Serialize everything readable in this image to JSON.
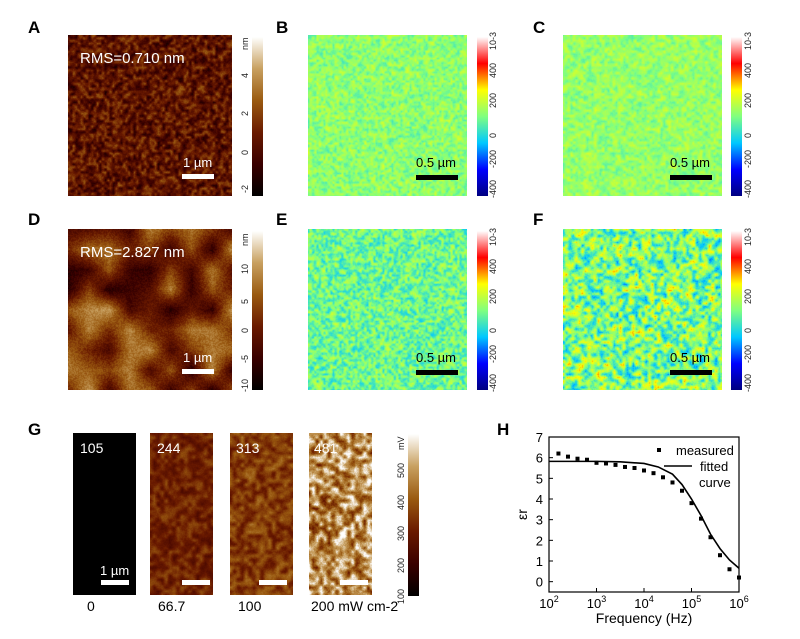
{
  "panels": {
    "A": {
      "label": "A",
      "rms": "RMS=0.710 nm",
      "scale": "1 µm",
      "cbar_unit": "nm",
      "cbar_ticks": [
        "4",
        "2",
        "0",
        "-2"
      ]
    },
    "B": {
      "label": "B",
      "scale": "0.5 µm",
      "cbar_unit": "10-3",
      "cbar_ticks": [
        "400",
        "200",
        "0",
        "-200",
        "-400"
      ]
    },
    "C": {
      "label": "C",
      "scale": "0.5 µm",
      "cbar_unit": "10-3",
      "cbar_ticks": [
        "400",
        "200",
        "0",
        "-200",
        "-400"
      ]
    },
    "D": {
      "label": "D",
      "rms": "RMS=2.827 nm",
      "scale": "1 µm",
      "cbar_unit": "nm",
      "cbar_ticks": [
        "10",
        "5",
        "0",
        "-5",
        "-10"
      ]
    },
    "E": {
      "label": "E",
      "scale": "0.5 µm",
      "cbar_unit": "10-3",
      "cbar_ticks": [
        "400",
        "200",
        "0",
        "-200",
        "-400"
      ]
    },
    "F": {
      "label": "F",
      "scale": "0.5 µm",
      "cbar_unit": "10-3",
      "cbar_ticks": [
        "400",
        "200",
        "0",
        "-200",
        "-400"
      ]
    },
    "G": {
      "label": "G",
      "scale": "1 µm",
      "values": [
        "105",
        "244",
        "313",
        "481"
      ],
      "intensities": [
        "0",
        "66.7",
        "100",
        "200 mW cm-2"
      ],
      "cbar_unit": "mV",
      "cbar_ticks": [
        "500",
        "400",
        "300",
        "200",
        "100"
      ]
    },
    "H": {
      "label": "H"
    }
  },
  "chart_data": {
    "type": "scatter+line",
    "xlabel": "Frequency (Hz)",
    "ylabel": "εr",
    "xscale": "log",
    "xlim": [
      100,
      1000000
    ],
    "ylim": [
      -0.5,
      7
    ],
    "xticks": [
      "10^2",
      "10^3",
      "10^4",
      "10^5",
      "10^6"
    ],
    "yticks": [
      "0",
      "1",
      "2",
      "3",
      "4",
      "5",
      "6",
      "7"
    ],
    "legend": {
      "placement": "top-right",
      "entries": [
        "measured",
        "fitted curve"
      ]
    },
    "series": [
      {
        "name": "measured",
        "kind": "scatter",
        "x": [
          158,
          251,
          398,
          631,
          1000,
          1585,
          2512,
          3981,
          6310,
          10000,
          15849,
          25119,
          39811,
          63096,
          100000,
          158489,
          251189,
          398107,
          630957,
          1000000
        ],
        "y": [
          6.2,
          6.05,
          5.95,
          5.9,
          5.75,
          5.72,
          5.65,
          5.55,
          5.5,
          5.38,
          5.25,
          5.05,
          4.8,
          4.4,
          3.8,
          3.05,
          2.15,
          1.28,
          0.6,
          0.2
        ]
      },
      {
        "name": "fitted curve",
        "kind": "line",
        "x": [
          100,
          1000,
          3162,
          10000,
          19953,
          39811,
          63096,
          100000,
          158489,
          251189,
          398107,
          630957,
          1000000
        ],
        "y": [
          5.82,
          5.82,
          5.8,
          5.72,
          5.55,
          5.2,
          4.7,
          4.0,
          3.2,
          2.3,
          1.6,
          1.05,
          0.65
        ]
      }
    ]
  },
  "colors": {
    "afm": [
      "#000000",
      "#3a0000",
      "#6a1a00",
      "#9a5a10",
      "#c8a060",
      "#ffffff"
    ],
    "strain": [
      "#000080",
      "#0000ff",
      "#00c8ff",
      "#80ff80",
      "#ffff00",
      "#ff0000",
      "#ffffff"
    ]
  }
}
